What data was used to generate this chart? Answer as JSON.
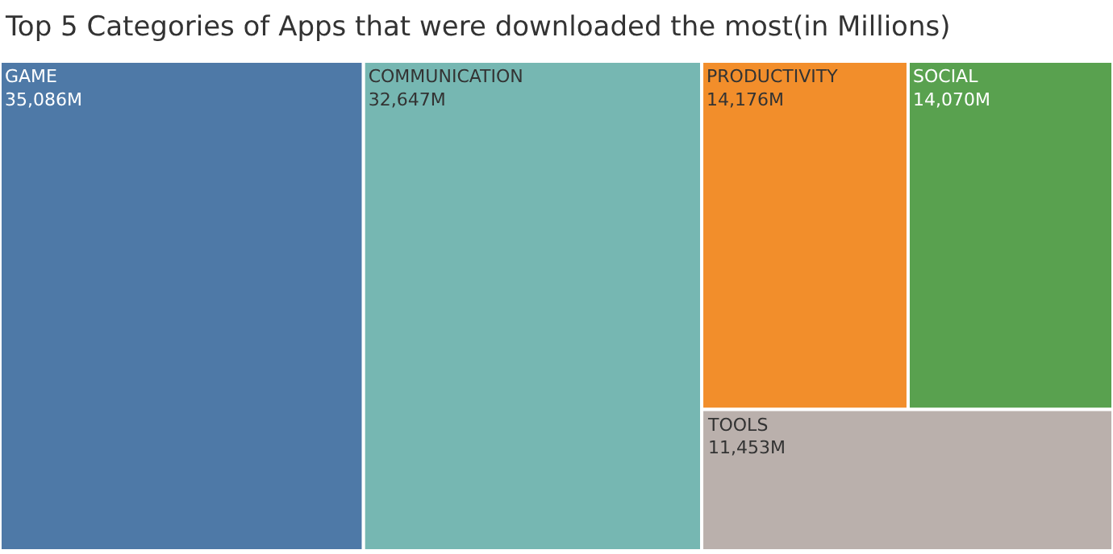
{
  "chart_data": {
    "type": "other",
    "title": "Top 5 Categories of Apps that were downloaded the most(in Millions)",
    "categories": [
      "GAME",
      "COMMUNICATION",
      "PRODUCTIVITY",
      "SOCIAL",
      "TOOLS"
    ],
    "values": [
      35086,
      32647,
      14176,
      14070,
      11453
    ],
    "value_labels": [
      "35,086M",
      "32,647M",
      "14,176M",
      "14,070M",
      "11,453M"
    ],
    "colors": [
      "#4e79a7",
      "#76b7b2",
      "#f28e2b",
      "#59a14f",
      "#bab0ac"
    ]
  }
}
